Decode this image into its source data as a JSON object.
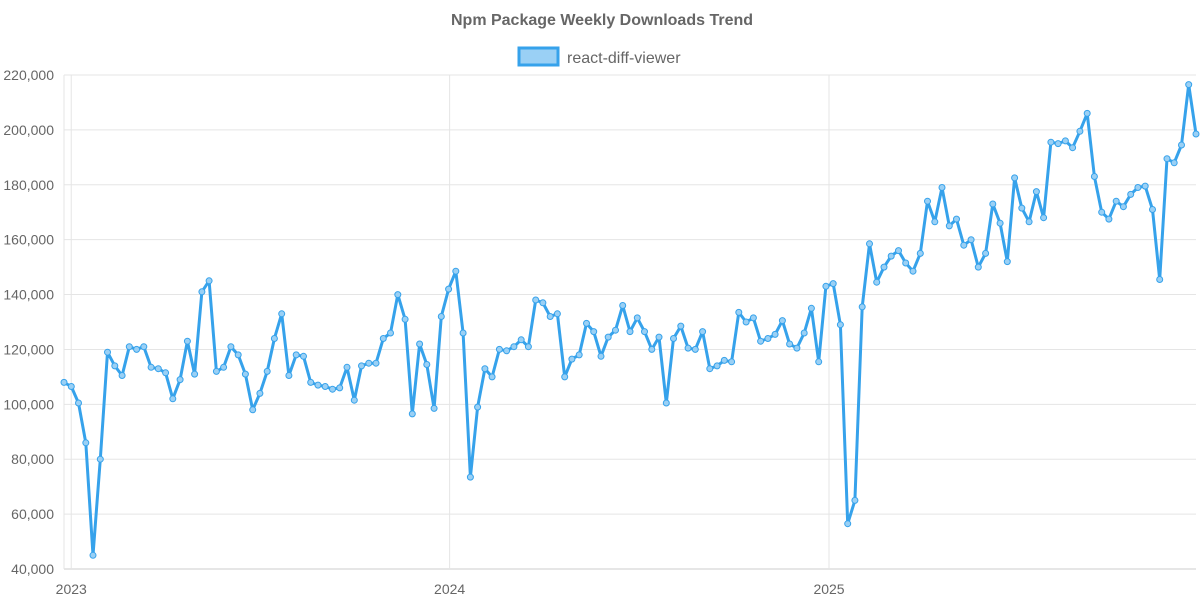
{
  "chart_data": {
    "type": "line",
    "title": "Npm Package Weekly Downloads Trend",
    "legend": {
      "position": "top-center"
    },
    "grid": true,
    "series": [
      {
        "name": "react-diff-viewer",
        "color": "#36a2eb",
        "fill": "#9ad0f5",
        "start_date": "2022-12-25",
        "interval_days": 7,
        "values": [
          108000,
          106500,
          100500,
          86000,
          45000,
          80000,
          119000,
          114000,
          110500,
          121000,
          120000,
          121000,
          113500,
          113000,
          111500,
          102000,
          109000,
          123000,
          111000,
          141000,
          145000,
          112000,
          113500,
          121000,
          118000,
          111000,
          98000,
          104000,
          112000,
          124000,
          133000,
          110500,
          118000,
          117500,
          108000,
          107000,
          106500,
          105500,
          106000,
          113500,
          101500,
          114000,
          115000,
          115000,
          124000,
          126000,
          140000,
          131000,
          96500,
          122000,
          114500,
          98500,
          132000,
          142000,
          148500,
          126000,
          73500,
          99000,
          113000,
          110000,
          120000,
          119500,
          121000,
          123500,
          121000,
          138000,
          137000,
          132000,
          133000,
          110000,
          116500,
          118000,
          129500,
          126500,
          117500,
          124500,
          127000,
          136000,
          126500,
          131500,
          126500,
          120000,
          124500,
          100500,
          124000,
          128500,
          120500,
          120000,
          126500,
          113000,
          114000,
          116000,
          115500,
          133500,
          130000,
          131500,
          123000,
          124000,
          125500,
          130500,
          122000,
          120500,
          126000,
          135000,
          115500,
          143000,
          144000,
          129000,
          56500,
          65000,
          135500,
          158500,
          144500,
          150000,
          154000,
          156000,
          151500,
          148500,
          155000,
          174000,
          166500,
          179000,
          165000,
          167500,
          158000,
          160000,
          150000,
          155000,
          173000,
          166000,
          152000,
          182500,
          171500,
          166500,
          177500,
          168000,
          195500,
          195000,
          196000,
          193500,
          199500,
          206000,
          183000,
          170000,
          167500,
          174000,
          172000,
          176500,
          179000,
          179500,
          171000,
          145500,
          189500,
          188000,
          194500,
          216500,
          198500
        ]
      }
    ],
    "x_axis": {
      "min": "2022-12-25",
      "max": "2025-12-21",
      "tick_labels": [
        {
          "label": "2023",
          "date": "2023-01-01"
        },
        {
          "label": "2024",
          "date": "2024-01-01"
        },
        {
          "label": "2025",
          "date": "2025-01-01"
        }
      ]
    },
    "y_axis": {
      "min": 40000,
      "max": 220000,
      "step": 20000,
      "tick_labels": [
        "40,000",
        "60,000",
        "80,000",
        "100,000",
        "120,000",
        "140,000",
        "160,000",
        "180,000",
        "200,000",
        "220,000"
      ]
    }
  }
}
